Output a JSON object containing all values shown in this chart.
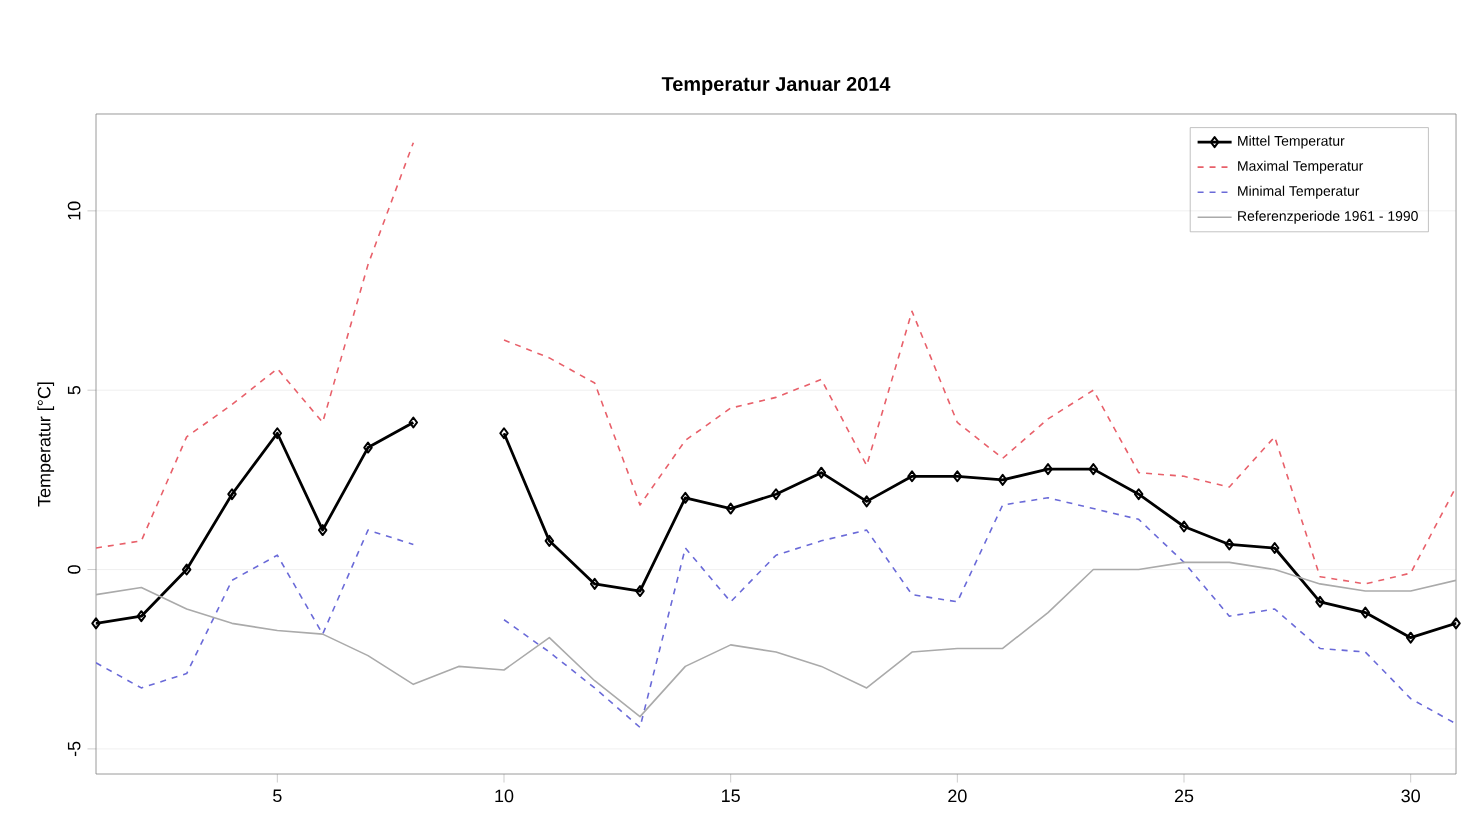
{
  "chart_data": {
    "type": "line",
    "title": "Temperatur Januar 2014",
    "ylabel": "Temperatur [°C]",
    "x": [
      1,
      2,
      3,
      4,
      5,
      6,
      7,
      8,
      9,
      10,
      11,
      12,
      13,
      14,
      15,
      16,
      17,
      18,
      19,
      20,
      21,
      22,
      23,
      24,
      25,
      26,
      27,
      28,
      29,
      30,
      31
    ],
    "series": [
      {
        "name": "Mittel Temperatur",
        "color": "#000000",
        "marker": "diamond",
        "line_style": "solid",
        "values": [
          -1.5,
          -1.3,
          0.0,
          2.1,
          3.8,
          1.1,
          3.4,
          4.1,
          null,
          3.8,
          0.8,
          -0.4,
          -0.6,
          2.0,
          1.7,
          2.1,
          2.7,
          1.9,
          2.6,
          2.6,
          2.5,
          2.8,
          2.8,
          2.1,
          1.2,
          0.7,
          0.6,
          -0.9,
          -1.2,
          -1.9,
          -1.5
        ]
      },
      {
        "name": "Maximal Temperatur",
        "color": "#e8606a",
        "marker": "none",
        "line_style": "dashed",
        "values": [
          0.6,
          0.8,
          3.7,
          4.6,
          5.6,
          4.1,
          8.5,
          11.9,
          null,
          6.4,
          5.9,
          5.2,
          1.8,
          3.6,
          4.5,
          4.8,
          5.3,
          2.9,
          7.2,
          4.1,
          3.1,
          4.2,
          5.0,
          2.7,
          2.6,
          2.3,
          3.7,
          -0.2,
          -0.4,
          -0.1,
          2.3
        ]
      },
      {
        "name": "Minimal Temperatur",
        "color": "#6a6ad8",
        "marker": "none",
        "line_style": "dashed",
        "values": [
          -2.6,
          -3.3,
          -2.9,
          -0.3,
          0.4,
          -1.8,
          1.1,
          0.7,
          null,
          -1.4,
          -2.3,
          -3.3,
          -4.4,
          0.6,
          -0.9,
          0.4,
          0.8,
          1.1,
          -0.7,
          -0.9,
          1.8,
          2.0,
          1.7,
          1.4,
          0.2,
          -1.3,
          -1.1,
          -2.2,
          -2.3,
          -3.6,
          -4.3
        ]
      },
      {
        "name": "Referenzperiode 1961 - 1990",
        "color": "#aaaaaa",
        "marker": "none",
        "line_style": "solid",
        "values": [
          -0.7,
          -0.5,
          -1.1,
          -1.5,
          -1.7,
          -1.8,
          -2.4,
          -3.2,
          -2.7,
          -2.8,
          -1.9,
          -3.1,
          -4.1,
          -2.7,
          -2.1,
          -2.3,
          -2.7,
          -3.3,
          -2.3,
          -2.2,
          -2.2,
          -1.2,
          0.0,
          0.0,
          0.2,
          0.2,
          0.0,
          -0.4,
          -0.6,
          -0.6,
          -0.3
        ]
      }
    ],
    "xlim": [
      1,
      31
    ],
    "xticks": [
      5,
      10,
      15,
      20,
      25,
      30
    ],
    "ylim": [
      -5.7,
      12.7
    ],
    "yticks": [
      -5,
      0,
      5,
      10
    ],
    "grid": "y",
    "legend": "top right"
  }
}
